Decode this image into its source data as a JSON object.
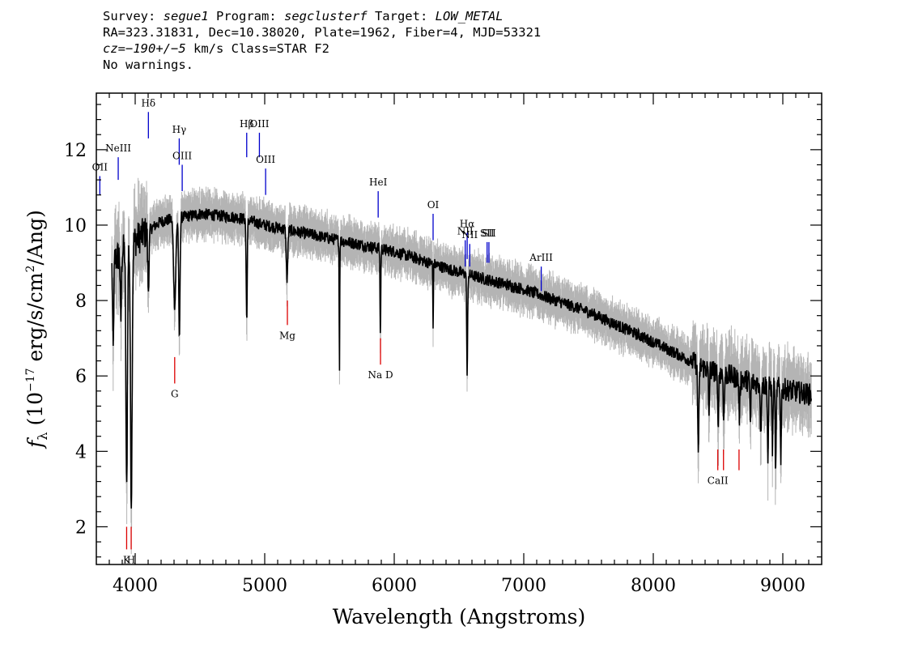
{
  "header": {
    "line1": {
      "survey_label": "Survey: ",
      "survey": "segue1",
      "program_label": " Program: ",
      "program": "segclusterf",
      "target_label": " Target: ",
      "target": "LOW_METAL"
    },
    "line2": "RA=323.31831, Dec=10.38020, Plate=1962, Fiber=4, MJD=53321",
    "line3": {
      "cz_label": "cz=",
      "cz": "−190+/−5",
      "rest": " km/s Class=STAR F2"
    },
    "line4": "No warnings."
  },
  "chart_data": {
    "type": "line",
    "xlabel": "Wavelength (Angstroms)",
    "ylabel": "fλ (10⁻¹⁷ erg/s/cm²/Ang)",
    "xlim": [
      3700,
      9300
    ],
    "ylim": [
      1,
      13.5
    ],
    "x_ticks": [
      4000,
      5000,
      6000,
      7000,
      8000,
      9000
    ],
    "y_ticks": [
      2,
      4,
      6,
      8,
      10,
      12
    ],
    "series_colors": {
      "flux": "#000000",
      "error": "#b4b4b4",
      "emission_lines": "#0000cc",
      "absorption_lines": "#dd0000"
    },
    "continuum": [
      [
        3820,
        9.0
      ],
      [
        3900,
        9.3
      ],
      [
        4000,
        9.6
      ],
      [
        4200,
        10.1
      ],
      [
        4500,
        10.3
      ],
      [
        4800,
        10.2
      ],
      [
        5000,
        10.0
      ],
      [
        5500,
        9.65
      ],
      [
        6000,
        9.3
      ],
      [
        6500,
        8.75
      ],
      [
        7000,
        8.3
      ],
      [
        7500,
        7.7
      ],
      [
        8000,
        6.9
      ],
      [
        8400,
        6.2
      ],
      [
        8800,
        5.8
      ],
      [
        9220,
        5.5
      ]
    ],
    "absorption_features": [
      {
        "x": 3830,
        "depth": 2.4,
        "width": 6
      },
      {
        "x": 3889,
        "depth": 1.8,
        "width": 6
      },
      {
        "x": 3934,
        "depth": 6.5,
        "width": 8
      },
      {
        "x": 3970,
        "depth": 6.8,
        "width": 9
      },
      {
        "x": 4102,
        "depth": 1.6,
        "width": 7
      },
      {
        "x": 4305,
        "depth": 2.3,
        "width": 12
      },
      {
        "x": 4341,
        "depth": 3.2,
        "width": 7
      },
      {
        "x": 4861,
        "depth": 2.6,
        "width": 6
      },
      {
        "x": 5172,
        "depth": 1.3,
        "width": 8
      },
      {
        "x": 5577,
        "depth": 3.4,
        "width": 3
      },
      {
        "x": 5893,
        "depth": 2.3,
        "width": 4
      },
      {
        "x": 6300,
        "depth": 1.7,
        "width": 3
      },
      {
        "x": 6563,
        "depth": 2.7,
        "width": 5
      },
      {
        "x": 8348,
        "depth": 2.2,
        "width": 7
      },
      {
        "x": 8430,
        "depth": 1.2,
        "width": 5
      },
      {
        "x": 8500,
        "depth": 1.4,
        "width": 6
      },
      {
        "x": 8545,
        "depth": 1.2,
        "width": 6
      },
      {
        "x": 8665,
        "depth": 1.0,
        "width": 6
      },
      {
        "x": 8750,
        "depth": 1.1,
        "width": 5
      },
      {
        "x": 8830,
        "depth": 1.3,
        "width": 5
      },
      {
        "x": 8885,
        "depth": 2.0,
        "width": 5
      },
      {
        "x": 8920,
        "depth": 1.6,
        "width": 5
      },
      {
        "x": 8945,
        "depth": 2.4,
        "width": 5
      },
      {
        "x": 8985,
        "depth": 1.8,
        "width": 5
      }
    ],
    "emission_lines": [
      {
        "label": "OII",
        "x": 3727,
        "y_bottom": 10.8,
        "y_top": 11.3
      },
      {
        "label": "NeIII",
        "x": 3869,
        "y_bottom": 11.2,
        "y_top": 11.8
      },
      {
        "label": "Hδ",
        "x": 4102,
        "y_bottom": 12.3,
        "y_top": 13.0
      },
      {
        "label": "Hγ",
        "x": 4340,
        "y_bottom": 11.6,
        "y_top": 12.3
      },
      {
        "label": "OIII",
        "x": 4363,
        "y_bottom": 10.9,
        "y_top": 11.6
      },
      {
        "label": "Hβ",
        "x": 4861,
        "y_bottom": 11.8,
        "y_top": 12.45
      },
      {
        "label": "OIII",
        "x": 4959,
        "y_bottom": 11.8,
        "y_top": 12.45
      },
      {
        "label": "OIII",
        "x": 5007,
        "y_bottom": 10.8,
        "y_top": 11.5
      },
      {
        "label": "HeI",
        "x": 5876,
        "y_bottom": 10.2,
        "y_top": 10.9
      },
      {
        "label": "OI",
        "x": 6300,
        "y_bottom": 9.6,
        "y_top": 10.3
      },
      {
        "label": "NII",
        "x": 6548,
        "y_bottom": 8.9,
        "y_top": 9.6
      },
      {
        "label": "Hα",
        "x": 6563,
        "y_bottom": 9.1,
        "y_top": 9.8
      },
      {
        "label": "NII",
        "x": 6583,
        "y_bottom": 8.9,
        "y_top": 9.5
      },
      {
        "label": "SII",
        "x": 6717,
        "y_bottom": 9.0,
        "y_top": 9.55
      },
      {
        "label": "SII",
        "x": 6731,
        "y_bottom": 9.0,
        "y_top": 9.55
      },
      {
        "label": "ArIII",
        "x": 7135,
        "y_bottom": 8.25,
        "y_top": 8.9
      }
    ],
    "absorption_lines": [
      {
        "label": "K",
        "x": 3934,
        "y_bottom": 1.4,
        "y_top": 2.0
      },
      {
        "label": "H",
        "x": 3969,
        "y_bottom": 1.4,
        "y_top": 2.0
      },
      {
        "label": "G",
        "x": 4305,
        "y_bottom": 5.8,
        "y_top": 6.5
      },
      {
        "label": "Mg",
        "x": 5175,
        "y_bottom": 7.35,
        "y_top": 8.0
      },
      {
        "label": "Na  D",
        "x": 5894,
        "y_bottom": 6.3,
        "y_top": 7.0
      },
      {
        "label": "CaII",
        "x": 8498,
        "y_bottom": 3.5,
        "y_top": 4.05
      },
      {
        "label": "",
        "x": 8542,
        "y_bottom": 3.5,
        "y_top": 4.05
      },
      {
        "label": "",
        "x": 8662,
        "y_bottom": 3.5,
        "y_top": 4.05
      }
    ]
  }
}
